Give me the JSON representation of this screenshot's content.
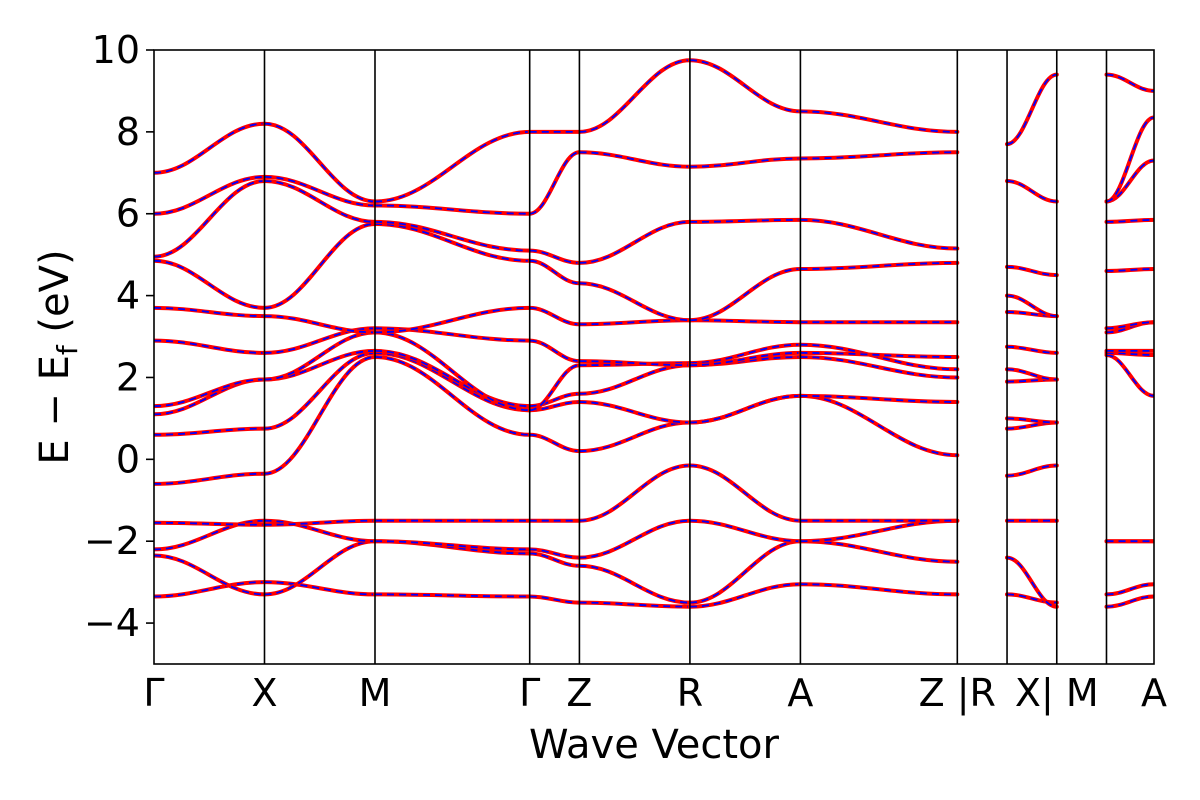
{
  "chart_data": {
    "type": "line",
    "xlabel": "Wave Vector",
    "ylabel": "E − E_f (eV)",
    "ylabel_main": "E − E",
    "ylabel_sub": "f",
    "ylabel_tail": " (eV)",
    "ylim": [
      -5,
      10
    ],
    "yticks": [
      -4,
      -2,
      0,
      2,
      4,
      6,
      8,
      10
    ],
    "ytick_labels": [
      "−4",
      "−2",
      "0",
      "2",
      "4",
      "6",
      "8",
      "10"
    ],
    "grid": false,
    "legend": "none",
    "kpath": [
      "Γ",
      "X",
      "M",
      "Γ",
      "Z",
      "R",
      "A",
      "Z",
      "R",
      "X",
      "M",
      "A"
    ],
    "kpath_positions": [
      0,
      1,
      2,
      3.4,
      3.85,
      4.85,
      5.85,
      7.27,
      7.72,
      8.17,
      8.62,
      9.05
    ],
    "xtick_labels": [
      "Γ",
      "X",
      "M",
      "Γ",
      "Z",
      "R",
      "A",
      "Z |R",
      "X| M",
      "A"
    ],
    "xtick_label_positions": [
      0,
      1,
      2,
      3.4,
      3.85,
      4.85,
      5.85,
      7.27,
      8.17,
      9.05
    ],
    "segments": [
      [
        0,
        1
      ],
      [
        1,
        2
      ],
      [
        2,
        3.4
      ],
      [
        3.4,
        3.85
      ],
      [
        3.85,
        4.85
      ],
      [
        4.85,
        5.85
      ],
      [
        5.85,
        7.27
      ],
      [
        7.72,
        8.17
      ],
      [
        8.62,
        9.05
      ]
    ],
    "series_styles": [
      {
        "color": "#ff0000",
        "style": "solid"
      },
      {
        "color": "#0000ff",
        "style": "dashed"
      }
    ],
    "band_energies_at_nodes": [
      [
        -3.35,
        -3.0,
        -3.3,
        -3.35,
        -3.5,
        -3.6,
        -3.05,
        -3.3,
        -3.3,
        -3.5,
        -3.6,
        -3.35
      ],
      [
        -2.35,
        -3.3,
        -2.0,
        -2.3,
        -2.6,
        -3.5,
        -2.0,
        -2.5,
        -2.4,
        -3.6,
        -3.3,
        -3.05
      ],
      [
        -2.2,
        -1.5,
        -2.0,
        -2.2,
        -2.4,
        -1.5,
        -2.0,
        -1.5,
        -1.5,
        -1.5,
        -2.0,
        -2.0
      ],
      [
        -1.55,
        -1.6,
        -1.5,
        -1.5,
        -1.5,
        -0.15,
        -1.5,
        -1.5,
        -0.4,
        -0.15,
        -2.0,
        -2.0
      ],
      [
        -0.6,
        -0.35,
        2.5,
        0.6,
        0.2,
        0.9,
        1.55,
        0.1,
        0.75,
        0.9,
        2.55,
        1.55
      ],
      [
        0.6,
        0.75,
        2.6,
        1.2,
        1.4,
        0.9,
        1.55,
        1.4,
        1.0,
        0.9,
        2.6,
        2.55
      ],
      [
        1.1,
        1.95,
        2.65,
        1.3,
        1.6,
        2.3,
        2.5,
        2.0,
        1.9,
        1.95,
        2.65,
        2.65
      ],
      [
        1.3,
        1.95,
        3.1,
        1.2,
        2.3,
        2.35,
        2.8,
        2.2,
        2.2,
        1.95,
        3.1,
        3.35
      ],
      [
        2.9,
        2.6,
        3.2,
        2.9,
        2.4,
        2.3,
        2.6,
        2.5,
        2.75,
        2.6,
        3.2,
        3.35
      ],
      [
        3.7,
        3.5,
        3.1,
        3.7,
        3.3,
        3.4,
        3.35,
        3.35,
        3.6,
        3.5,
        4.6,
        4.65
      ],
      [
        4.85,
        3.7,
        5.75,
        4.85,
        4.3,
        3.4,
        4.65,
        4.8,
        4.0,
        3.5,
        5.8,
        5.85
      ],
      [
        4.95,
        6.8,
        5.8,
        5.1,
        4.8,
        5.8,
        5.85,
        5.15,
        4.7,
        4.5,
        6.3,
        7.3
      ],
      [
        6.0,
        6.9,
        6.2,
        6.0,
        7.5,
        7.15,
        7.35,
        7.5,
        6.8,
        6.3,
        6.3,
        8.35
      ],
      [
        7.0,
        8.2,
        6.3,
        8.0,
        8.0,
        9.75,
        8.5,
        8.0,
        7.7,
        9.4,
        9.4,
        9.0
      ]
    ]
  }
}
